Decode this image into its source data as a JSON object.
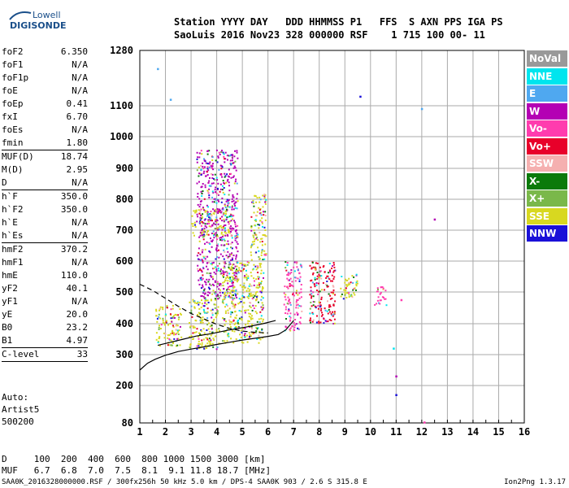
{
  "logo": {
    "line1": "Lowell",
    "line2": "DIGISONDE"
  },
  "header": {
    "row1": "Station YYYY DAY   DDD HHMMSS P1   FFS  S AXN PPS IGA PS",
    "row2": "SaoLuis 2016 Nov23 328 000000 RSF    1 715 100 00- 11"
  },
  "params": [
    {
      "key": "foF2",
      "value": "6.350",
      "sep": false
    },
    {
      "key": "foF1",
      "value": "N/A",
      "sep": false
    },
    {
      "key": "foF1p",
      "value": "N/A",
      "sep": false
    },
    {
      "key": "foE",
      "value": "N/A",
      "sep": false
    },
    {
      "key": "foEp",
      "value": "0.41",
      "sep": false
    },
    {
      "key": "fxI",
      "value": "6.70",
      "sep": false
    },
    {
      "key": "foEs",
      "value": "N/A",
      "sep": false
    },
    {
      "key": "fmin",
      "value": "1.80",
      "sep": true
    },
    {
      "key": "MUF(D)",
      "value": "18.74",
      "sep": false
    },
    {
      "key": "M(D)",
      "value": "2.95",
      "sep": false
    },
    {
      "key": "D",
      "value": "N/A",
      "sep": true
    },
    {
      "key": "h`F",
      "value": "350.0",
      "sep": false
    },
    {
      "key": "h`F2",
      "value": "350.0",
      "sep": false
    },
    {
      "key": "h`E",
      "value": "N/A",
      "sep": false
    },
    {
      "key": "h`Es",
      "value": "N/A",
      "sep": true
    },
    {
      "key": "hmF2",
      "value": "370.2",
      "sep": false
    },
    {
      "key": "hmF1",
      "value": "N/A",
      "sep": false
    },
    {
      "key": "hmE",
      "value": "110.0",
      "sep": false
    },
    {
      "key": "yF2",
      "value": "40.1",
      "sep": false
    },
    {
      "key": "yF1",
      "value": "N/A",
      "sep": false
    },
    {
      "key": "yE",
      "value": "20.0",
      "sep": false
    },
    {
      "key": "B0",
      "value": "23.2",
      "sep": false
    },
    {
      "key": "B1",
      "value": "4.97",
      "sep": true
    },
    {
      "key": "C-level",
      "value": "33",
      "sep": true
    }
  ],
  "auto": {
    "line1": "Auto:",
    "line2": "Artist5",
    "line3": "500200"
  },
  "bottom": {
    "row1": "D     100  200  400  600  800 1000 1500 3000 [km]",
    "row2": "MUF   6.7  6.8  7.0  7.5  8.1  9.1 11.8 18.7 [MHz]"
  },
  "footer": "SAA0K_2016328000000.RSF / 300fx256h 50 kHz 5.0 km / DPS-4 SAA0K 903 / 2.6 S 315.8 E",
  "version": "Ion2Png 1.3.17",
  "legend": [
    {
      "label": "NoVal",
      "color": "#999999"
    },
    {
      "label": "NNE",
      "color": "#00e5ee"
    },
    {
      "label": "E",
      "color": "#4fa8f0"
    },
    {
      "label": "W",
      "color": "#b400b4"
    },
    {
      "label": "Vo-",
      "color": "#ff3cae"
    },
    {
      "label": "Vo+",
      "color": "#e8002a"
    },
    {
      "label": "SSW",
      "color": "#f5b0b0"
    },
    {
      "label": "X-",
      "color": "#0b7a0b"
    },
    {
      "label": "X+",
      "color": "#7ab84a"
    },
    {
      "label": "SSE",
      "color": "#d8d820"
    },
    {
      "label": "NNW",
      "color": "#1a10d8"
    }
  ],
  "chart_data": {
    "type": "scatter",
    "xlabel": "",
    "ylabel": "",
    "xlim": [
      1,
      16
    ],
    "ylim": [
      80,
      1280
    ],
    "x_ticks": [
      1,
      2,
      3,
      4,
      5,
      6,
      7,
      8,
      9,
      10,
      11,
      12,
      13,
      14,
      15,
      16
    ],
    "y_ticks": [
      80,
      200,
      300,
      400,
      500,
      600,
      700,
      800,
      900,
      1000,
      1100,
      1280
    ],
    "grid": true,
    "regions": [
      {
        "x": [
          1.6,
          2.6
        ],
        "y": [
          330,
          460
        ],
        "color": "#d8d820"
      },
      {
        "x": [
          2.9,
          4.1
        ],
        "y": [
          320,
          480
        ],
        "color": "#d8d820"
      },
      {
        "x": [
          3.0,
          4.6
        ],
        "y": [
          680,
          770
        ],
        "color": "#d8d820"
      },
      {
        "x": [
          3.2,
          4.8
        ],
        "y": [
          480,
          960
        ],
        "color": "#b400b4"
      },
      {
        "x": [
          4.2,
          5.8
        ],
        "y": [
          340,
          600
        ],
        "color": "#d8d820"
      },
      {
        "x": [
          5.3,
          5.9
        ],
        "y": [
          600,
          820
        ],
        "color": "#d8d820"
      },
      {
        "x": [
          6.6,
          7.3
        ],
        "y": [
          380,
          600
        ],
        "color": "#ff3cae"
      },
      {
        "x": [
          7.6,
          8.6
        ],
        "y": [
          400,
          600
        ],
        "color": "#e8002a"
      },
      {
        "x": [
          8.8,
          9.5
        ],
        "y": [
          480,
          560
        ],
        "color": "#d8d820"
      },
      {
        "x": [
          10.1,
          10.6
        ],
        "y": [
          460,
          520
        ],
        "color": "#ff3cae"
      }
    ],
    "lines": [
      {
        "name": "",
        "style": "solid",
        "x": [
          1.0,
          1.3,
          1.6,
          2.0,
          2.5,
          3.0,
          3.5,
          4.0,
          4.5,
          5.0,
          5.5,
          6.0,
          6.4,
          6.7,
          7.0
        ],
        "y": [
          250,
          272,
          285,
          298,
          310,
          318,
          325,
          333,
          340,
          347,
          353,
          359,
          365,
          380,
          410
        ]
      },
      {
        "name": "",
        "style": "solid",
        "x": [
          1.7,
          2.2,
          2.7,
          3.2,
          3.8,
          4.5,
          5.2,
          5.8,
          6.3
        ],
        "y": [
          330,
          340,
          350,
          360,
          368,
          380,
          390,
          400,
          410
        ]
      },
      {
        "name": "",
        "style": "dashed",
        "x": [
          1.0,
          1.5,
          2.0,
          2.5,
          3.0,
          3.5,
          4.0,
          4.5,
          5.0,
          5.5,
          6.0
        ],
        "y": [
          525,
          505,
          480,
          455,
          432,
          415,
          398,
          385,
          376,
          372,
          370
        ]
      }
    ],
    "outliers": [
      {
        "x": 1.7,
        "y": 1220,
        "color": "#4fa8f0"
      },
      {
        "x": 2.2,
        "y": 1120,
        "color": "#4fa8f0"
      },
      {
        "x": 9.6,
        "y": 1130,
        "color": "#1a10d8"
      },
      {
        "x": 12.0,
        "y": 1090,
        "color": "#4fa8f0"
      },
      {
        "x": 12.5,
        "y": 735,
        "color": "#b400b4"
      },
      {
        "x": 11.0,
        "y": 170,
        "color": "#1a10d8"
      },
      {
        "x": 11.0,
        "y": 230,
        "color": "#b400b4"
      },
      {
        "x": 12.1,
        "y": 82,
        "color": "#ff3cae"
      },
      {
        "x": 11.2,
        "y": 475,
        "color": "#ff3cae"
      },
      {
        "x": 10.9,
        "y": 320,
        "color": "#00e5ee"
      }
    ]
  }
}
